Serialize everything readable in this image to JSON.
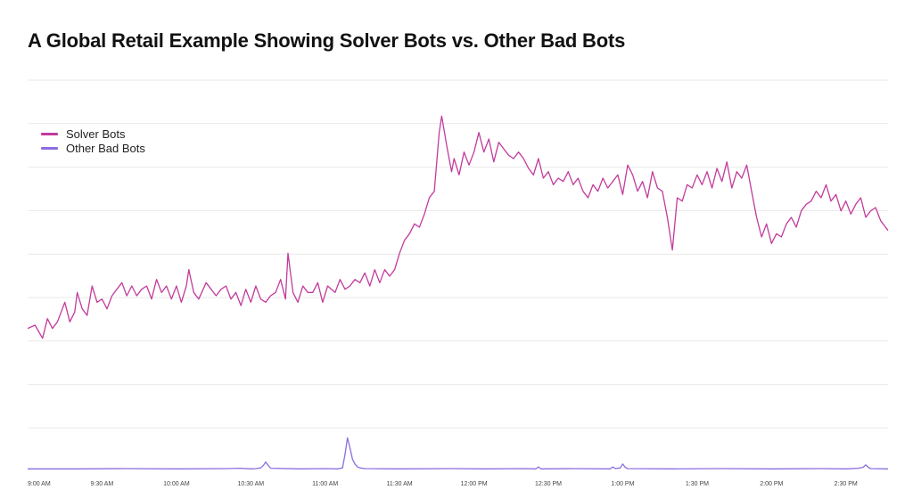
{
  "title": "A Global Retail Example Showing Solver Bots vs. Other Bad Bots",
  "legend": [
    {
      "label": "Solver Bots",
      "color": "#c23b9c"
    },
    {
      "label": "Other Bad Bots",
      "color": "#8a6ee0"
    }
  ],
  "chart_data": {
    "type": "line",
    "title": "A Global Retail Example Showing Solver Bots vs. Other Bad Bots",
    "xlabel": "",
    "ylabel": "",
    "grid": true,
    "legend_position": "top-left",
    "x_tick_labels": [
      "9:00 AM",
      "9:30 AM",
      "10:00 AM",
      "10:30 AM",
      "11:00 AM",
      "11:30 AM",
      "12:00 PM",
      "12:30 PM",
      "1:00 PM",
      "1:30 PM",
      "2:00 PM",
      "2:30 PM"
    ],
    "x_range_minutes": [
      0,
      347
    ],
    "gridline_count": 9,
    "series": [
      {
        "name": "Solver Bots",
        "color": "#c23b9c",
        "points": [
          [
            0,
            44
          ],
          [
            3,
            45
          ],
          [
            6,
            41
          ],
          [
            8,
            47
          ],
          [
            10,
            44
          ],
          [
            12,
            46
          ],
          [
            15,
            52
          ],
          [
            17,
            46
          ],
          [
            19,
            49
          ],
          [
            20,
            55
          ],
          [
            22,
            50
          ],
          [
            24,
            48
          ],
          [
            26,
            57
          ],
          [
            28,
            52
          ],
          [
            30,
            53
          ],
          [
            32,
            50
          ],
          [
            34,
            54
          ],
          [
            36,
            56
          ],
          [
            38,
            58
          ],
          [
            40,
            54
          ],
          [
            42,
            57
          ],
          [
            44,
            54
          ],
          [
            46,
            56
          ],
          [
            48,
            57
          ],
          [
            50,
            53
          ],
          [
            52,
            59
          ],
          [
            54,
            55
          ],
          [
            56,
            57
          ],
          [
            58,
            53
          ],
          [
            60,
            57
          ],
          [
            62,
            52
          ],
          [
            64,
            57
          ],
          [
            65,
            62
          ],
          [
            67,
            55
          ],
          [
            69,
            53
          ],
          [
            72,
            58
          ],
          [
            74,
            56
          ],
          [
            76,
            54
          ],
          [
            78,
            56
          ],
          [
            80,
            57
          ],
          [
            82,
            53
          ],
          [
            84,
            55
          ],
          [
            86,
            51
          ],
          [
            88,
            56
          ],
          [
            90,
            52
          ],
          [
            92,
            57
          ],
          [
            94,
            53
          ],
          [
            96,
            52
          ],
          [
            98,
            54
          ],
          [
            100,
            55
          ],
          [
            102,
            59
          ],
          [
            104,
            53
          ],
          [
            105,
            67
          ],
          [
            107,
            55
          ],
          [
            109,
            52
          ],
          [
            111,
            57
          ],
          [
            113,
            55
          ],
          [
            115,
            55
          ],
          [
            117,
            58
          ],
          [
            119,
            52
          ],
          [
            121,
            57
          ],
          [
            124,
            55
          ],
          [
            126,
            59
          ],
          [
            128,
            56
          ],
          [
            130,
            57
          ],
          [
            132,
            59
          ],
          [
            134,
            58
          ],
          [
            136,
            61
          ],
          [
            138,
            57
          ],
          [
            140,
            62
          ],
          [
            142,
            58
          ],
          [
            144,
            62
          ],
          [
            146,
            60
          ],
          [
            148,
            62
          ],
          [
            150,
            67
          ],
          [
            152,
            71
          ],
          [
            154,
            73
          ],
          [
            156,
            76
          ],
          [
            158,
            75
          ],
          [
            160,
            79
          ],
          [
            162,
            84
          ],
          [
            164,
            86
          ],
          [
            166,
            104
          ],
          [
            167,
            109
          ],
          [
            169,
            100
          ],
          [
            171,
            92
          ],
          [
            172,
            96
          ],
          [
            174,
            91
          ],
          [
            176,
            98
          ],
          [
            178,
            94
          ],
          [
            180,
            98
          ],
          [
            182,
            104
          ],
          [
            184,
            98
          ],
          [
            186,
            102
          ],
          [
            188,
            95
          ],
          [
            190,
            101
          ],
          [
            192,
            99
          ],
          [
            194,
            97
          ],
          [
            196,
            96
          ],
          [
            198,
            98
          ],
          [
            200,
            96
          ],
          [
            202,
            93
          ],
          [
            204,
            91
          ],
          [
            206,
            96
          ],
          [
            208,
            90
          ],
          [
            210,
            92
          ],
          [
            212,
            88
          ],
          [
            214,
            90
          ],
          [
            216,
            89
          ],
          [
            218,
            92
          ],
          [
            220,
            88
          ],
          [
            222,
            90
          ],
          [
            224,
            86
          ],
          [
            226,
            84
          ],
          [
            228,
            88
          ],
          [
            230,
            86
          ],
          [
            232,
            90
          ],
          [
            234,
            87
          ],
          [
            236,
            89
          ],
          [
            238,
            91
          ],
          [
            240,
            85
          ],
          [
            242,
            94
          ],
          [
            244,
            91
          ],
          [
            246,
            86
          ],
          [
            248,
            89
          ],
          [
            250,
            84
          ],
          [
            252,
            92
          ],
          [
            254,
            87
          ],
          [
            256,
            86
          ],
          [
            258,
            78
          ],
          [
            260,
            68
          ],
          [
            262,
            84
          ],
          [
            264,
            83
          ],
          [
            266,
            88
          ],
          [
            268,
            87
          ],
          [
            270,
            91
          ],
          [
            272,
            88
          ],
          [
            274,
            92
          ],
          [
            276,
            87
          ],
          [
            278,
            93
          ],
          [
            280,
            89
          ],
          [
            282,
            95
          ],
          [
            284,
            87
          ],
          [
            286,
            92
          ],
          [
            288,
            90
          ],
          [
            290,
            94
          ],
          [
            292,
            86
          ],
          [
            294,
            78
          ],
          [
            296,
            72
          ],
          [
            298,
            76
          ],
          [
            300,
            70
          ],
          [
            302,
            73
          ],
          [
            304,
            72
          ],
          [
            306,
            76
          ],
          [
            308,
            78
          ],
          [
            310,
            75
          ],
          [
            312,
            80
          ],
          [
            314,
            82
          ],
          [
            316,
            83
          ],
          [
            318,
            86
          ],
          [
            320,
            84
          ],
          [
            322,
            88
          ],
          [
            324,
            83
          ],
          [
            326,
            85
          ],
          [
            328,
            80
          ],
          [
            330,
            83
          ],
          [
            332,
            79
          ],
          [
            334,
            82
          ],
          [
            336,
            84
          ],
          [
            338,
            78
          ],
          [
            340,
            80
          ],
          [
            342,
            81
          ],
          [
            344,
            77
          ],
          [
            347,
            74
          ]
        ]
      },
      {
        "name": "Other Bad Bots",
        "color": "#8a6ee0",
        "points": [
          [
            0,
            1.0
          ],
          [
            20,
            1.0
          ],
          [
            40,
            1.1
          ],
          [
            60,
            1.0
          ],
          [
            80,
            1.1
          ],
          [
            86,
            1.2
          ],
          [
            90,
            1.0
          ],
          [
            92,
            1.1
          ],
          [
            94,
            1.3
          ],
          [
            95,
            2.0
          ],
          [
            96,
            3.1
          ],
          [
            97,
            2.1
          ],
          [
            98,
            1.2
          ],
          [
            110,
            1.0
          ],
          [
            120,
            1.1
          ],
          [
            125,
            1.0
          ],
          [
            127,
            1.3
          ],
          [
            128,
            5.5
          ],
          [
            129,
            10.5
          ],
          [
            130,
            7.5
          ],
          [
            131,
            4.0
          ],
          [
            132,
            2.5
          ],
          [
            133,
            1.6
          ],
          [
            134,
            1.3
          ],
          [
            136,
            1.1
          ],
          [
            150,
            1.0
          ],
          [
            170,
            1.1
          ],
          [
            185,
            1.0
          ],
          [
            200,
            1.1
          ],
          [
            205,
            1.0
          ],
          [
            206,
            1.6
          ],
          [
            207,
            1.0
          ],
          [
            220,
            1.1
          ],
          [
            235,
            1.0
          ],
          [
            236,
            1.6
          ],
          [
            237,
            1.1
          ],
          [
            239,
            1.3
          ],
          [
            240,
            2.5
          ],
          [
            241,
            1.5
          ],
          [
            242,
            1.1
          ],
          [
            260,
            1.0
          ],
          [
            280,
            1.1
          ],
          [
            300,
            1.0
          ],
          [
            320,
            1.1
          ],
          [
            330,
            1.0
          ],
          [
            335,
            1.2
          ],
          [
            337,
            1.5
          ],
          [
            338,
            2.2
          ],
          [
            339,
            1.5
          ],
          [
            340,
            1.1
          ],
          [
            347,
            1.0
          ]
        ]
      }
    ]
  }
}
